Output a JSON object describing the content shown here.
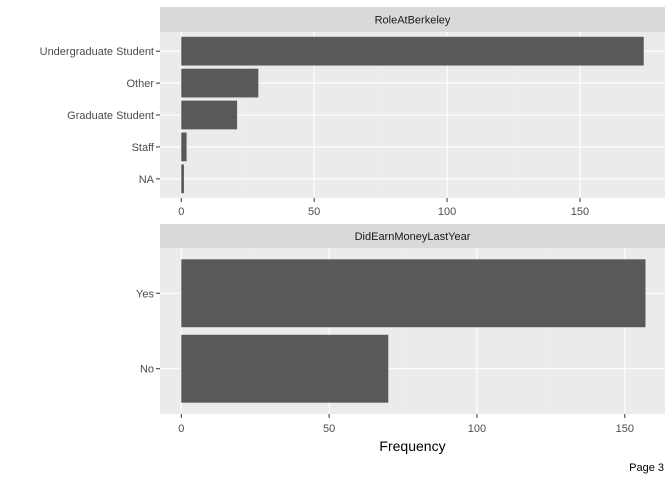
{
  "chart_data": [
    {
      "type": "bar",
      "orientation": "horizontal",
      "title": "RoleAtBerkeley",
      "categories": [
        "Undergraduate Student",
        "Other",
        "Graduate Student",
        "Staff",
        "NA"
      ],
      "values": [
        174,
        29,
        21,
        2,
        1
      ],
      "xlim": [
        -8,
        182
      ],
      "xticks": [
        0,
        50,
        100,
        150
      ],
      "xlabel": "",
      "grid": true
    },
    {
      "type": "bar",
      "orientation": "horizontal",
      "title": "DidEarnMoneyLastYear",
      "categories": [
        "Yes",
        "No"
      ],
      "values": [
        157,
        70
      ],
      "xlim": [
        -7.2,
        163.6
      ],
      "xticks": [
        0,
        50,
        100,
        150
      ],
      "xlabel": "Frequency",
      "grid": true
    }
  ],
  "footer": {
    "page_label": "Page 3"
  },
  "colors": {
    "panel_background": "#ebebeb",
    "strip_background": "#d9d9d9",
    "bar_fill": "#595959",
    "grid_major": "#ffffff",
    "grid_minor": "#f2f2f2"
  }
}
